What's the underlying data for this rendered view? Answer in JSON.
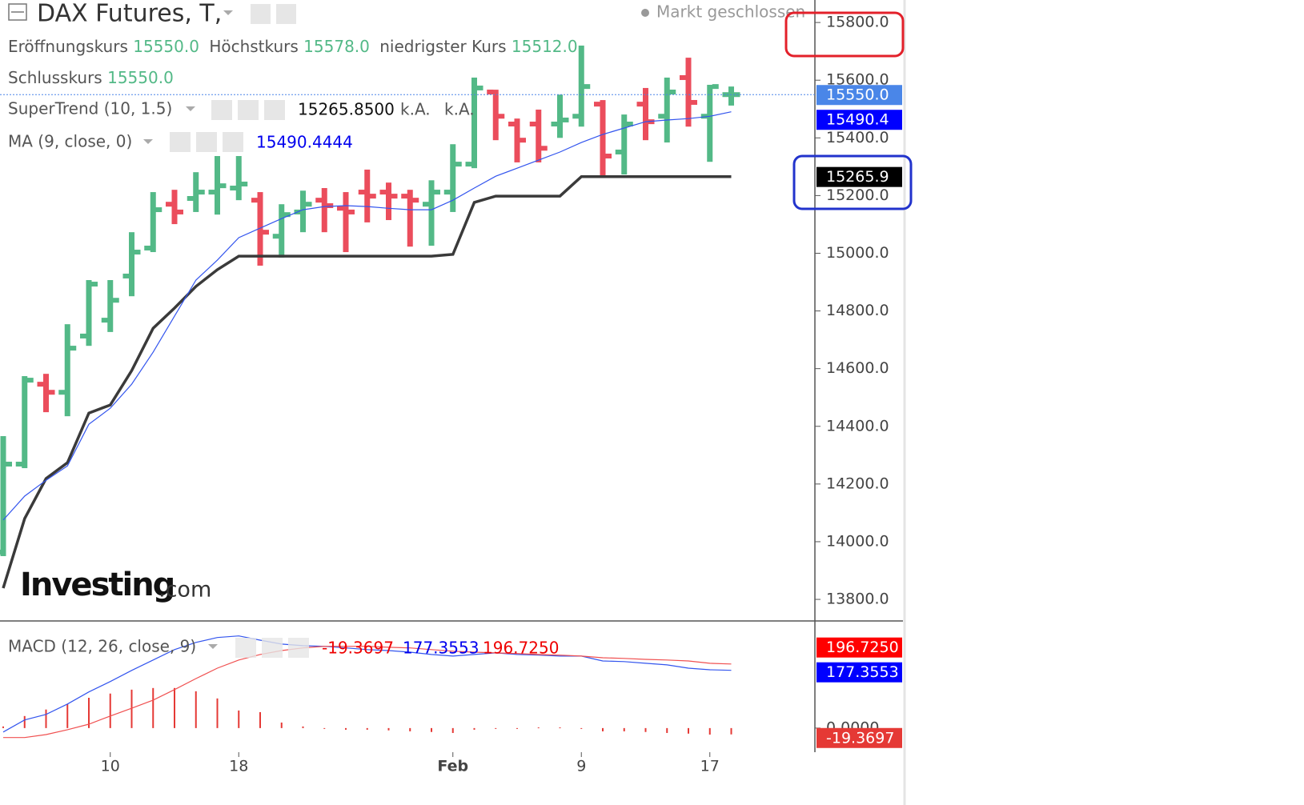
{
  "header": {
    "title": "DAX Futures, T,",
    "status": "Markt geschlossen"
  },
  "logo": {
    "brand": "Investing",
    "suffix": ".com"
  },
  "chart_data": [
    {
      "type": "ohlc",
      "categories": [
        null,
        null,
        null,
        null,
        null,
        "10",
        null,
        null,
        null,
        null,
        null,
        "18",
        null,
        null,
        null,
        null,
        null,
        null,
        null,
        null,
        null,
        "Feb",
        null,
        null,
        null,
        null,
        null,
        "9",
        null,
        null,
        null,
        null,
        null,
        "17",
        null
      ],
      "open": {
        "name": "Eröffnungskurs",
        "last_value_label": "15550.0",
        "values": [
          13964,
          14269,
          14546,
          14518,
          14713,
          14768,
          14921,
          15018,
          15170,
          15190,
          15212,
          15226,
          15184,
          15059,
          15143,
          15184,
          15156,
          15212,
          15212,
          15198,
          15170,
          15212,
          15309,
          15559,
          15448,
          15448,
          15448,
          15475,
          15517,
          15351,
          15517,
          15475,
          15609,
          15475,
          15550
        ]
      },
      "high": {
        "name": "Höchstkurs",
        "last_value_label": "15578.0",
        "values": [
          14366,
          14574,
          14582,
          14754,
          14907,
          14907,
          15073,
          15212,
          15220,
          15281,
          15337,
          15337,
          15212,
          15170,
          15217,
          15226,
          15212,
          15290,
          15245,
          15220,
          15253,
          15378,
          15609,
          15567,
          15467,
          15498,
          15550,
          15720,
          15531,
          15481,
          15573,
          15609,
          15678,
          15584,
          15578
        ]
      },
      "low": {
        "name": "niedrigster Kurs",
        "last_value_label": "15512.0",
        "values": [
          13950,
          14255,
          14449,
          14435,
          14679,
          14727,
          14851,
          15004,
          15101,
          15143,
          15134,
          15184,
          14957,
          14985,
          15073,
          15073,
          15004,
          15107,
          15115,
          15023,
          15026,
          15143,
          15295,
          15392,
          15315,
          15315,
          15400,
          15439,
          15267,
          15273,
          15392,
          15384,
          15439,
          15317,
          15512
        ]
      },
      "close": {
        "name": "Schlusskurs",
        "last_value_label": "15550.0",
        "badge_color": "#4a86e8",
        "values": [
          14269,
          14560,
          14518,
          14671,
          14893,
          14837,
          15004,
          15151,
          15143,
          15212,
          15234,
          15240,
          15073,
          15134,
          15170,
          15165,
          15143,
          15198,
          15198,
          15184,
          15212,
          15309,
          15573,
          15475,
          15392,
          15364,
          15462,
          15578,
          15337,
          15448,
          15456,
          15559,
          15523,
          15578,
          15550
        ]
      },
      "up_color": "#53b987",
      "down_color": "#eb4d5c",
      "series": [
        {
          "name": "SuperTrend (10, 1.5)",
          "color": "#3a3a3a",
          "badge_color": "#000000",
          "last_value_labels": [
            "15265.8500",
            "15265.9"
          ],
          "extra_labels": [
            "k.A.",
            "k.A."
          ],
          "values": [
            13839,
            14080,
            14219,
            14274,
            14446,
            14474,
            14593,
            14740,
            14810,
            14885,
            14943,
            14990,
            14990,
            14990,
            14990,
            14990,
            14990,
            14990,
            14990,
            14990,
            14990,
            14996,
            15176,
            15198,
            15198,
            15198,
            15198,
            15265.85,
            15265.85,
            15265.85,
            15265.85,
            15265.85,
            15265.85,
            15265.85,
            15265.85
          ]
        },
        {
          "name": "MA (9, close, 0)",
          "color": "#3355ee",
          "badge_color": "#0000ff",
          "last_value_labels": [
            "15490.4444",
            "15490.4"
          ],
          "values": [
            14075,
            14158,
            14213,
            14263,
            14407,
            14463,
            14546,
            14657,
            14782,
            14907,
            14976,
            15054,
            15087,
            15120,
            15151,
            15162,
            15165,
            15162,
            15156,
            15151,
            15151,
            15184,
            15226,
            15267,
            15295,
            15323,
            15351,
            15384,
            15412,
            15434,
            15456,
            15462,
            15467,
            15475,
            15490.4444
          ]
        }
      ],
      "ylim": [
        13728,
        15878
      ],
      "yticks": [
        {
          "value": 13800,
          "label": "13800.0"
        },
        {
          "value": 14000,
          "label": "14000.0"
        },
        {
          "value": 14200,
          "label": "14200.0"
        },
        {
          "value": 14400,
          "label": "14400.0"
        },
        {
          "value": 14600,
          "label": "14600.0"
        },
        {
          "value": 14800,
          "label": "14800.0"
        },
        {
          "value": 15000,
          "label": "15000.0"
        },
        {
          "value": 15200,
          "label": "15200.0"
        },
        {
          "value": 15400,
          "label": "15400.0"
        },
        {
          "value": 15600,
          "label": "15600.0"
        },
        {
          "value": 15800,
          "label": "15800.0"
        }
      ]
    },
    {
      "type": "macd",
      "title": "MACD (12, 26, close, 9)",
      "histogram": {
        "color": "#e53935",
        "last_value_label": "-19.3697",
        "values": [
          5,
          37,
          57,
          74,
          93,
          106,
          118,
          123,
          123,
          113,
          91,
          54,
          49,
          17,
          5,
          -2,
          -5,
          -5,
          -7,
          -10,
          -12,
          -15,
          -5,
          -2,
          -2,
          2,
          2,
          -1,
          -10,
          -10,
          -12,
          -15,
          -17,
          -20,
          -19.3697
        ]
      },
      "series": [
        {
          "color": "#3355ee",
          "badge_color": "#0000ff",
          "last_value_label": "177.3553",
          "values": [
            -12,
            25,
            42,
            74,
            111,
            143,
            177,
            209,
            241,
            263,
            278,
            283,
            270,
            258,
            253,
            251,
            246,
            241,
            238,
            233,
            226,
            221,
            226,
            231,
            226,
            224,
            221,
            221,
            206,
            204,
            199,
            194,
            184,
            179,
            177.3553
          ]
        },
        {
          "color": "#f05050",
          "badge_color": "#ff0000",
          "last_value_label": "196.7250",
          "values": [
            -29,
            -29,
            -20,
            -5,
            12,
            37,
            61,
            86,
            118,
            152,
            184,
            209,
            226,
            238,
            246,
            251,
            251,
            251,
            248,
            246,
            241,
            236,
            233,
            231,
            229,
            226,
            224,
            221,
            216,
            214,
            211,
            209,
            206,
            199,
            196.725
          ]
        }
      ],
      "ylim": [
        -74,
        324
      ],
      "yticks": [
        {
          "value": 0,
          "label": "0.0000"
        }
      ]
    }
  ]
}
